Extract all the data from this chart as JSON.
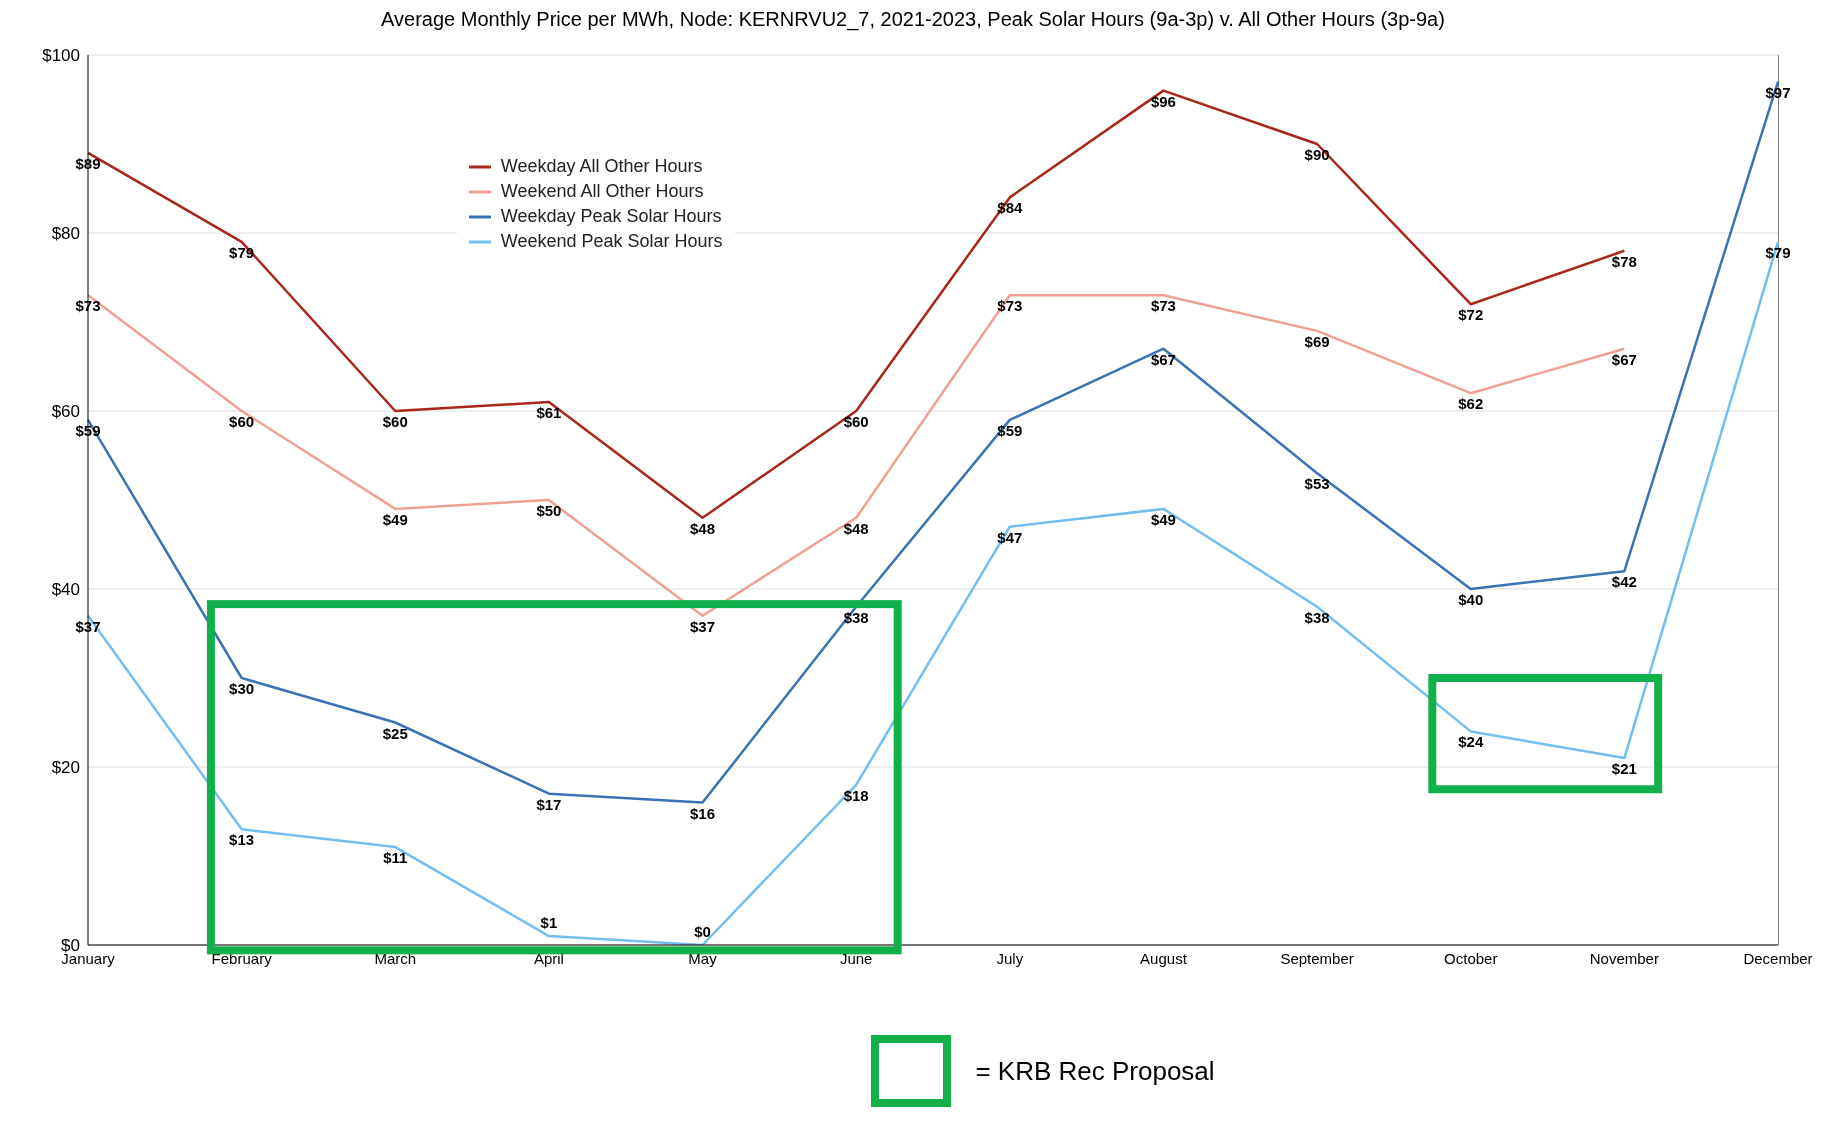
{
  "chart_data": {
    "type": "line",
    "title": "Average Monthly Price per MWh, Node: KERNRVU2_7, 2021-2023, Peak Solar Hours (9a-3p) v. All Other Hours (3p-9a)",
    "categories": [
      "January",
      "February",
      "March",
      "April",
      "May",
      "June",
      "July",
      "August",
      "September",
      "October",
      "November",
      "December"
    ],
    "series": [
      {
        "name": "Weekday All Other Hours",
        "color": "#a8261a",
        "values": [
          89,
          79,
          60,
          61,
          48,
          60,
          84,
          96,
          90,
          72,
          78,
          null
        ],
        "value_labels": [
          "$89",
          "$79",
          "$60",
          "$61",
          "$48",
          "$60",
          "$84",
          "$96",
          "$90",
          "$72",
          "$78",
          null
        ]
      },
      {
        "name": "Weekend All Other Hours",
        "color": "#f0a093",
        "values": [
          73,
          60,
          49,
          50,
          37,
          48,
          73,
          73,
          69,
          62,
          67,
          null
        ],
        "value_labels": [
          "$73",
          "$60",
          "$49",
          "$50",
          "$37",
          "$48",
          "$73",
          "$73",
          "$69",
          "$62",
          "$67",
          null
        ]
      },
      {
        "name": "Weekday Peak Solar Hours",
        "color": "#3a72b4",
        "values": [
          59,
          30,
          25,
          17,
          16,
          38,
          59,
          67,
          53,
          40,
          42,
          97
        ],
        "value_labels": [
          "$59",
          "$30",
          "$25",
          "$17",
          "$16",
          "$38",
          "$59",
          "$67",
          "$53",
          "$40",
          "$42",
          "$97"
        ]
      },
      {
        "name": "Weekend Peak Solar Hours",
        "color": "#73bdf2",
        "values": [
          37,
          13,
          11,
          1,
          0,
          18,
          47,
          49,
          38,
          24,
          21,
          79
        ],
        "value_labels": [
          "$37",
          "$13",
          "$11",
          "$1",
          "$0",
          "$18",
          "$47",
          "$49",
          "$38",
          "$24",
          "$21",
          "$79"
        ]
      }
    ],
    "ylim": [
      0,
      100
    ],
    "yticks": [
      {
        "value": 0,
        "label": "$0"
      },
      {
        "value": 20,
        "label": "$20"
      },
      {
        "value": 40,
        "label": "$40"
      },
      {
        "value": 60,
        "label": "$60"
      },
      {
        "value": 80,
        "label": "$80"
      },
      {
        "value": 100,
        "label": "$100"
      }
    ],
    "grid": "y",
    "legend": "top left",
    "marker": "none",
    "line_style": "solid",
    "annotations": [
      "= KRB Rec Proposal"
    ]
  }
}
